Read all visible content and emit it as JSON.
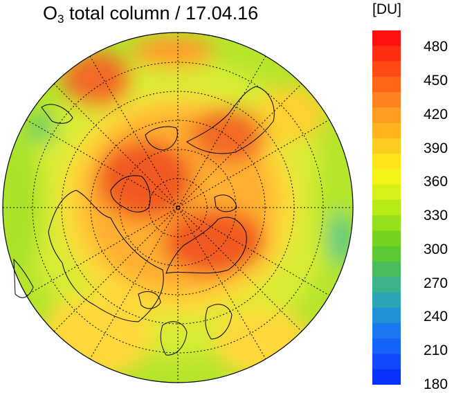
{
  "title": {
    "prefix": "O",
    "subscript": "3",
    "suffix": " total column / 17.04.16"
  },
  "colorbar": {
    "unit": "[DU]",
    "min": 180,
    "max": 495,
    "tick_labels": [
      "480",
      "450",
      "420",
      "390",
      "360",
      "330",
      "300",
      "270",
      "240",
      "210",
      "180"
    ],
    "tick_values": [
      480,
      450,
      420,
      390,
      360,
      330,
      300,
      270,
      240,
      210,
      180
    ],
    "colors_top_to_bottom": [
      "#ff1010",
      "#ff2e12",
      "#ff4a14",
      "#ff6618",
      "#ff8220",
      "#ff9c22",
      "#ffb420",
      "#ffcc20",
      "#ffe41c",
      "#f4f41a",
      "#d6f018",
      "#b8ea18",
      "#96e01c",
      "#76d420",
      "#5cc832",
      "#48bc5c",
      "#3cb48a",
      "#2ea4b8",
      "#2290d8",
      "#1a78f0",
      "#1462f8",
      "#1048fc",
      "#0c30fc"
    ]
  },
  "map": {
    "projection": "north polar stereographic",
    "grid": "dotted lat/lon",
    "field_colors": {
      "high": "#f24a22",
      "mid_high": "#ff9a2a",
      "mid": "#ffd83a",
      "low": "#b4e62c",
      "lowest": "#4fc68c"
    }
  }
}
